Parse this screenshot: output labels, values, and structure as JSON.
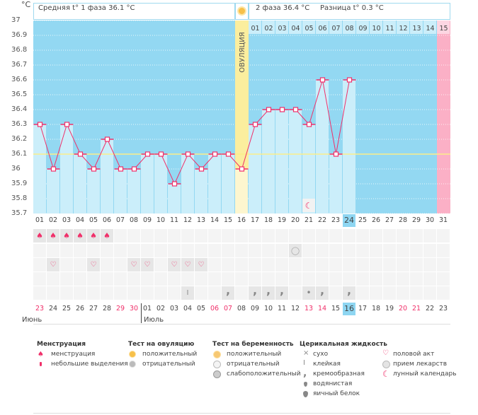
{
  "header": {
    "unit": "°C",
    "phase1": "Средняя t° 1 фаза 36.1 °C",
    "phase2": "2 фаза 36.4 °C",
    "difference": "Разница t° 0.3 °C",
    "ovulation_label": "ОВУЛЯЦИЯ"
  },
  "colors": {
    "background": "#93d8f2",
    "bar": "#cbeefa",
    "ovulation": "#fbee9e",
    "line": "#f0306a",
    "coverline": "#fbee8a",
    "last_day": "#fbb0c6",
    "highlight": "#8ed6f2",
    "weekend": "#f0306a"
  },
  "chart_data": {
    "type": "line",
    "ylim": [
      35.7,
      37.0
    ],
    "y_ticks": [
      "37",
      "36.9",
      "36.8",
      "36.7",
      "36.6",
      "36.5",
      "36.4",
      "36.3",
      "36.2",
      "36.1",
      "36",
      "35.9",
      "35.8",
      "35.7"
    ],
    "coverline": 36.1,
    "ovulation_day": 16,
    "cycle_days": [
      "01",
      "02",
      "03",
      "04",
      "05",
      "06",
      "07",
      "08",
      "09",
      "10",
      "11",
      "12",
      "13",
      "14",
      "15",
      "16",
      "17",
      "18",
      "19",
      "20",
      "21",
      "22",
      "23",
      "24",
      "25",
      "26",
      "27",
      "28",
      "29",
      "30",
      "31"
    ],
    "current_day": "24",
    "temperatures": [
      36.3,
      36.0,
      36.3,
      36.1,
      36.0,
      36.2,
      36.0,
      36.0,
      36.1,
      36.1,
      35.9,
      36.1,
      36.0,
      36.1,
      36.1,
      36.0,
      36.3,
      36.4,
      36.4,
      36.4,
      36.3,
      36.6,
      36.1,
      36.6
    ],
    "post_ovulation_days": [
      "01",
      "02",
      "03",
      "04",
      "05",
      "06",
      "07",
      "08",
      "09",
      "10",
      "11",
      "12",
      "13",
      "14",
      "15"
    ],
    "moon_day": 21
  },
  "rows": {
    "menstruation_days": [
      1,
      2,
      3,
      4,
      5,
      6
    ],
    "pregnancy_negative_days": [
      20
    ],
    "intercourse_days": [
      2,
      5,
      8,
      9,
      11,
      12,
      13
    ],
    "cervical": [
      {
        "day": 12,
        "type": "sticky"
      },
      {
        "day": 15,
        "type": "creamy"
      },
      {
        "day": 17,
        "type": "creamy"
      },
      {
        "day": 18,
        "type": "creamy"
      },
      {
        "day": 19,
        "type": "creamy"
      },
      {
        "day": 21,
        "type": "watery"
      },
      {
        "day": 22,
        "type": "creamy"
      },
      {
        "day": 24,
        "type": "creamy"
      }
    ]
  },
  "calendar": {
    "dates": [
      "23",
      "24",
      "25",
      "26",
      "27",
      "28",
      "29",
      "30",
      "01",
      "02",
      "03",
      "04",
      "05",
      "06",
      "07",
      "08",
      "09",
      "10",
      "11",
      "12",
      "13",
      "14",
      "15",
      "16",
      "17",
      "18",
      "19",
      "20",
      "21",
      "22",
      "23"
    ],
    "weekend_flags": [
      1,
      0,
      0,
      0,
      0,
      0,
      1,
      1,
      0,
      0,
      0,
      0,
      0,
      1,
      1,
      0,
      0,
      0,
      0,
      0,
      1,
      1,
      0,
      0,
      0,
      0,
      0,
      1,
      1,
      0,
      0
    ],
    "today": "16",
    "month1": "Июнь",
    "month2": "Июль"
  },
  "legend": {
    "menstruation": {
      "title": "Менструация",
      "items": [
        "менструация",
        "небольшие выделения"
      ]
    },
    "ovulation_test": {
      "title": "Тест на овуляцию",
      "items": [
        "положительный",
        "отрицательный"
      ]
    },
    "pregnancy_test": {
      "title": "Тест на беременность",
      "items": [
        "положительный",
        "отрицательный",
        "слабоположительный"
      ]
    },
    "cervical": {
      "title": "Церикальная жидкость",
      "items": [
        "сухо",
        "клейкая",
        "кремообразная",
        "водянистая",
        "яичный белок"
      ]
    },
    "other": {
      "items": [
        "половой акт",
        "прием лекарств",
        "лунный календарь"
      ]
    }
  }
}
